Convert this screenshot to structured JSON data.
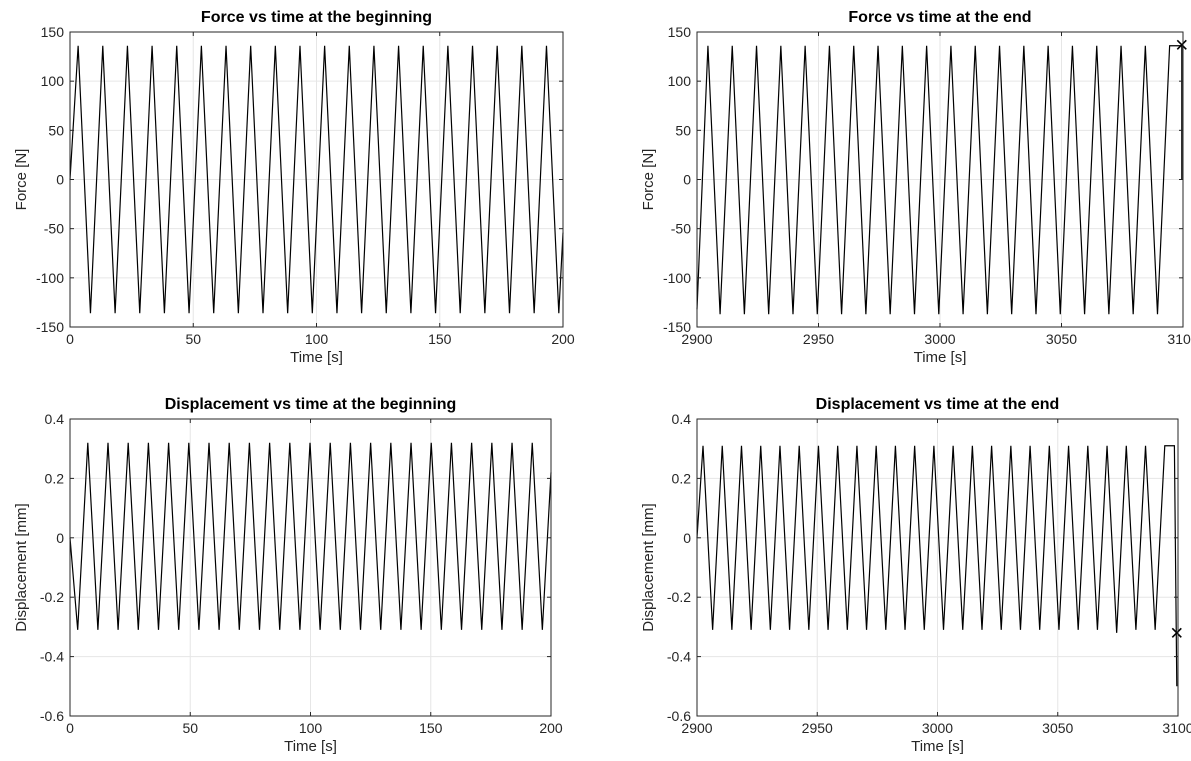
{
  "chart_data": [
    {
      "type": "line",
      "title": "Force vs time at the beginning",
      "xlabel": "Time [s]",
      "ylabel": "Force [N]",
      "xlim": [
        0,
        200
      ],
      "ylim": [
        -150,
        150
      ],
      "xticks": [
        0,
        50,
        100,
        150,
        200
      ],
      "yticks": [
        -150,
        -100,
        -50,
        0,
        50,
        100,
        150
      ],
      "grid": true,
      "series": [
        {
          "x": [
            0,
            3.3,
            8.3,
            13.3,
            18.3,
            23.3,
            28.3,
            33.3,
            38.3,
            43.3,
            48.3,
            53.3,
            58.3,
            63.3,
            68.3,
            73.3,
            78.3,
            83.3,
            88.3,
            93.3,
            98.3,
            103.3,
            108.3,
            113.3,
            118.3,
            123.3,
            128.3,
            133.3,
            138.3,
            143.3,
            148.3,
            153.3,
            158.3,
            163.3,
            168.3,
            173.3,
            178.3,
            183.3,
            188.3,
            193.3,
            198.3,
            200
          ],
          "y": [
            0,
            136,
            -136,
            136,
            -136,
            136,
            -136,
            136,
            -136,
            136,
            -136,
            136,
            -136,
            136,
            -136,
            136,
            -136,
            136,
            -136,
            136,
            -136,
            136,
            -136,
            136,
            -136,
            136,
            -136,
            136,
            -136,
            136,
            -136,
            136,
            -136,
            136,
            -136,
            136,
            -136,
            136,
            -136,
            136,
            -136,
            -54
          ]
        }
      ]
    },
    {
      "type": "line",
      "title": "Force vs time at the end",
      "xlabel": "Time [s]",
      "ylabel": "Force [N]",
      "xlim": [
        2900,
        3100
      ],
      "ylim": [
        -150,
        150
      ],
      "xticks": [
        2900,
        2950,
        3000,
        3050,
        3100
      ],
      "yticks": [
        -150,
        -100,
        -50,
        0,
        50,
        100,
        150
      ],
      "grid": true,
      "series": [
        {
          "x": [
            2900,
            2904.5,
            2909.5,
            2914.5,
            2919.5,
            2924.5,
            2929.5,
            2934.5,
            2939.5,
            2944.5,
            2949.5,
            2954.5,
            2959.5,
            2964.5,
            2969.5,
            2974.5,
            2979.5,
            2984.5,
            2989.5,
            2994.5,
            2999.5,
            3004.5,
            3009.5,
            3014.5,
            3019.5,
            3024.5,
            3029.5,
            3034.5,
            3039.5,
            3044.5,
            3049.5,
            3054.5,
            3059.5,
            3064.5,
            3069.5,
            3074.5,
            3079.5,
            3084.5,
            3089.5,
            3094.5,
            3099.5,
            3099.5
          ],
          "y": [
            -132,
            136,
            -137,
            136,
            -137,
            136,
            -137,
            136,
            -137,
            136,
            -137,
            136,
            -137,
            136,
            -137,
            136,
            -137,
            136,
            -137,
            136,
            -137,
            136,
            -137,
            136,
            -137,
            136,
            -137,
            136,
            -137,
            136,
            -137,
            136,
            -137,
            136,
            -137,
            136,
            -137,
            136,
            -137,
            136,
            136,
            0
          ]
        }
      ],
      "markers": [
        {
          "x": 3099.5,
          "y": 137,
          "symbol": "x"
        }
      ]
    },
    {
      "type": "line",
      "title": "Displacement vs time at the beginning",
      "xlabel": "Time [s]",
      "ylabel": "Displacement [mm]",
      "xlim": [
        0,
        200
      ],
      "ylim": [
        -0.6,
        0.4
      ],
      "xticks": [
        0,
        50,
        100,
        150,
        200
      ],
      "yticks": [
        -0.6,
        -0.4,
        -0.2,
        0,
        0.2,
        0.4
      ],
      "grid": true,
      "series": [
        {
          "x": [
            0,
            3.2,
            7.4,
            11.6,
            15.8,
            20.0,
            24.2,
            28.4,
            32.6,
            36.8,
            41.0,
            45.2,
            49.4,
            53.6,
            57.8,
            62.0,
            66.2,
            70.4,
            74.6,
            78.8,
            83.0,
            87.2,
            91.4,
            95.6,
            99.8,
            104.0,
            108.2,
            112.4,
            116.6,
            120.8,
            125.0,
            129.2,
            133.4,
            137.6,
            141.8,
            146.0,
            150.2,
            154.4,
            158.6,
            162.8,
            167.0,
            171.2,
            175.4,
            179.6,
            183.8,
            188.0,
            192.2,
            196.4,
            200
          ],
          "y": [
            0,
            -0.31,
            0.32,
            -0.31,
            0.32,
            -0.31,
            0.32,
            -0.31,
            0.32,
            -0.31,
            0.32,
            -0.31,
            0.32,
            -0.31,
            0.32,
            -0.31,
            0.32,
            -0.31,
            0.32,
            -0.31,
            0.32,
            -0.31,
            0.32,
            -0.31,
            0.32,
            -0.31,
            0.32,
            -0.31,
            0.32,
            -0.31,
            0.32,
            -0.31,
            0.32,
            -0.31,
            0.32,
            -0.31,
            0.32,
            -0.31,
            0.32,
            -0.31,
            0.32,
            -0.31,
            0.32,
            -0.31,
            0.32,
            -0.31,
            0.32,
            -0.31,
            0.22
          ]
        }
      ]
    },
    {
      "type": "line",
      "title": "Displacement vs time at the end",
      "xlabel": "Time [s]",
      "ylabel": "Displacement [mm]",
      "xlim": [
        2900,
        3100
      ],
      "ylim": [
        -0.6,
        0.4
      ],
      "xticks": [
        2900,
        2950,
        3000,
        3050,
        3100
      ],
      "yticks": [
        -0.6,
        -0.4,
        -0.2,
        0,
        0.2,
        0.4
      ],
      "grid": true,
      "series": [
        {
          "x": [
            2900,
            2902.5,
            2906.5,
            2910.5,
            2914.5,
            2918.5,
            2922.5,
            2926.5,
            2930.5,
            2934.5,
            2938.5,
            2942.5,
            2946.5,
            2950.5,
            2954.5,
            2958.5,
            2962.5,
            2966.5,
            2970.5,
            2974.5,
            2978.5,
            2982.5,
            2986.5,
            2990.5,
            2994.5,
            2998.5,
            3002.5,
            3006.5,
            3010.5,
            3014.5,
            3018.5,
            3022.5,
            3026.5,
            3030.5,
            3034.5,
            3038.5,
            3042.5,
            3046.5,
            3050.5,
            3054.5,
            3058.5,
            3062.5,
            3066.5,
            3070.5,
            3074.5,
            3078.5,
            3082.5,
            3086.5,
            3090.5,
            3094.5,
            3098.5,
            3099.5
          ],
          "y": [
            0,
            0.31,
            -0.31,
            0.31,
            -0.31,
            0.31,
            -0.31,
            0.31,
            -0.31,
            0.31,
            -0.31,
            0.31,
            -0.31,
            0.31,
            -0.31,
            0.31,
            -0.31,
            0.31,
            -0.31,
            0.31,
            -0.31,
            0.31,
            -0.31,
            0.31,
            -0.31,
            0.31,
            -0.31,
            0.31,
            -0.31,
            0.31,
            -0.31,
            0.31,
            -0.31,
            0.31,
            -0.31,
            0.31,
            -0.31,
            0.31,
            -0.31,
            0.31,
            -0.31,
            0.31,
            -0.31,
            0.31,
            -0.32,
            0.31,
            -0.31,
            0.31,
            -0.31,
            0.31,
            0.31,
            -0.5
          ]
        }
      ],
      "markers": [
        {
          "x": 3099.5,
          "y": -0.32,
          "symbol": "x"
        }
      ]
    }
  ]
}
